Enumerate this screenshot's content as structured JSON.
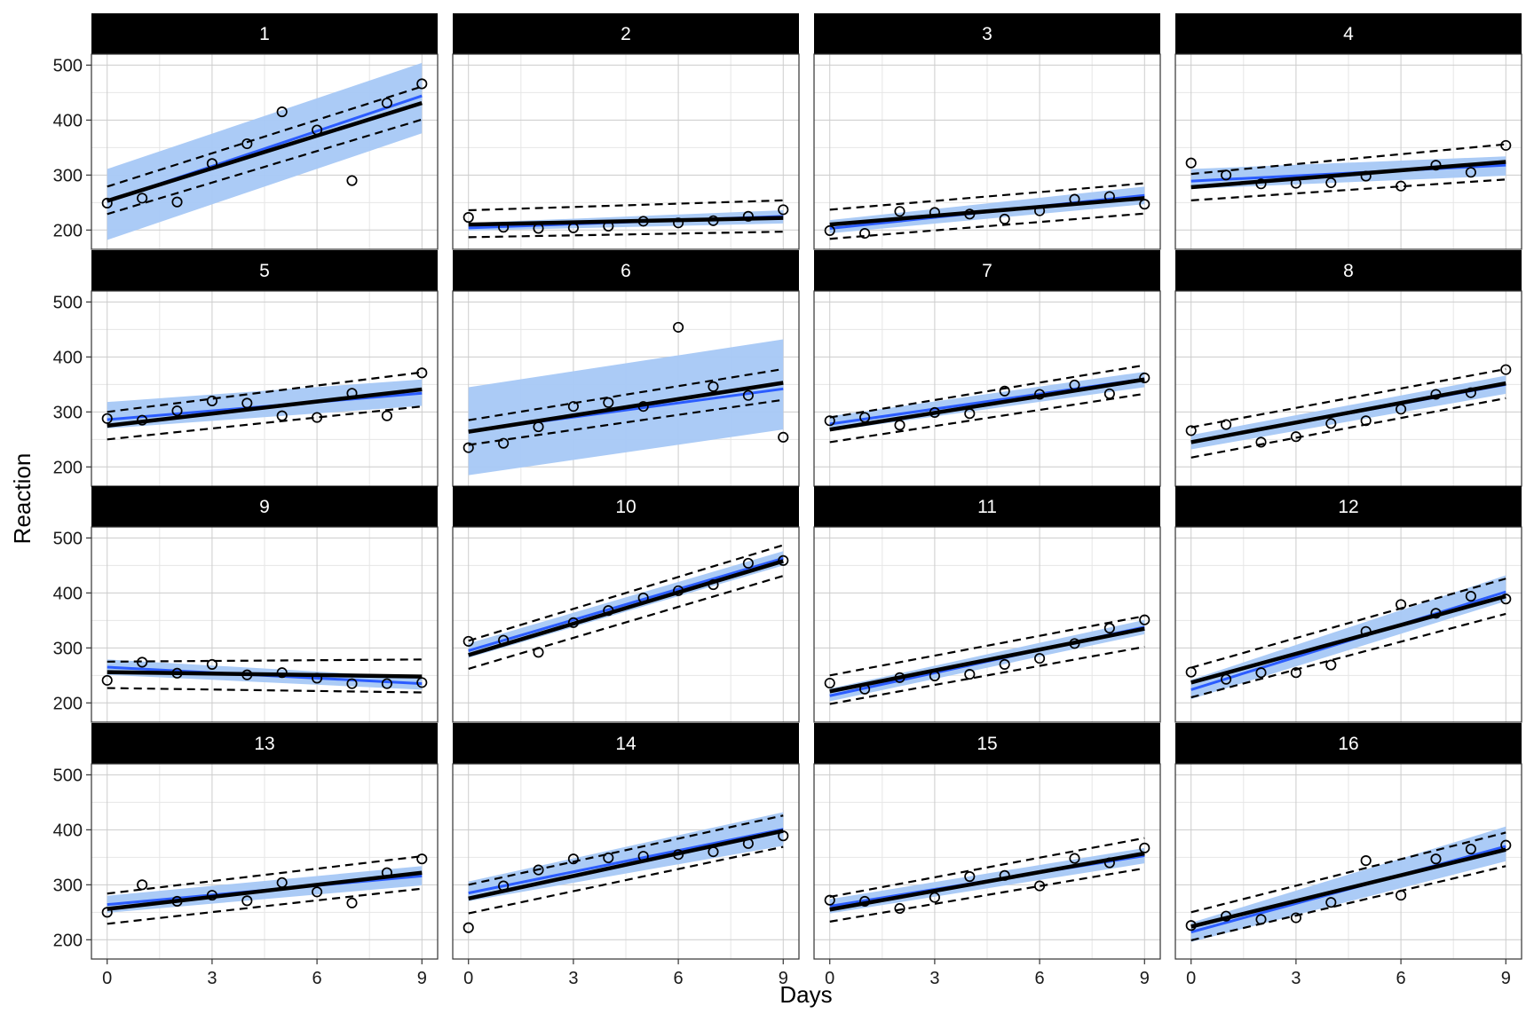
{
  "chart_data": {
    "type": "scatter",
    "facet_layout": "4 columns x 4 rows",
    "xlabel": "Days",
    "ylabel": "Reaction",
    "xlim": [
      -0.45,
      9.45
    ],
    "ylim": [
      165,
      520
    ],
    "x_ticks": [
      0,
      3,
      6,
      9
    ],
    "y_ticks": [
      200,
      300,
      400,
      500
    ],
    "grid": true,
    "legend": "none",
    "colors": {
      "strip_background": "#000000",
      "strip_text": "#ffffff",
      "confidence_band": "#a6c8f5",
      "blue_fit_line": "#2b5cff",
      "black_fit_line": "#000000",
      "dashed_interval": "#000000",
      "points": "#000000",
      "grid": "#cccccc",
      "panel_border": "#333333"
    },
    "series_layers": [
      "observed points (open circles)",
      "blue regression line",
      "light-blue confidence band",
      "black fitted line",
      "black dashed interval lines"
    ],
    "panels": [
      {
        "label": "1",
        "x": [
          0,
          1,
          2,
          3,
          4,
          5,
          6,
          7,
          8,
          9
        ],
        "y": [
          249,
          258,
          251,
          321,
          357,
          415,
          382,
          290,
          431,
          466
        ],
        "blue_fit": [
          252,
          444
        ],
        "black_fit": [
          253,
          431
        ],
        "band_lo": [
          182,
          376
        ],
        "band_hi": [
          311,
          504
        ],
        "dash_lo": [
          229,
          401
        ],
        "dash_hi": [
          279,
          461
        ]
      },
      {
        "label": "2",
        "x": [
          0,
          1,
          2,
          3,
          4,
          5,
          6,
          7,
          8,
          9
        ],
        "y": [
          223,
          205,
          203,
          204,
          207,
          216,
          213,
          217,
          225,
          237
        ],
        "blue_fit": [
          204,
          225
        ],
        "black_fit": [
          210,
          222
        ],
        "band_lo": [
          199,
          212
        ],
        "band_hi": [
          213,
          236
        ],
        "dash_lo": [
          187,
          197
        ],
        "dash_hi": [
          236,
          254
        ]
      },
      {
        "label": "3",
        "x": [
          0,
          1,
          2,
          3,
          4,
          5,
          6,
          7,
          8,
          9
        ],
        "y": [
          199,
          194,
          234,
          232,
          229,
          220,
          235,
          256,
          261,
          247
        ],
        "blue_fit": [
          203,
          263
        ],
        "black_fit": [
          210,
          258
        ],
        "band_lo": [
          194,
          247
        ],
        "band_hi": [
          218,
          279
        ],
        "dash_lo": [
          184,
          230
        ],
        "dash_hi": [
          237,
          285
        ]
      },
      {
        "label": "4",
        "x": [
          0,
          1,
          2,
          3,
          4,
          5,
          6,
          7,
          8,
          9
        ],
        "y": [
          322,
          300,
          284,
          285,
          286,
          298,
          280,
          318,
          305,
          354
        ],
        "blue_fit": [
          289,
          318
        ],
        "black_fit": [
          278,
          324
        ],
        "band_lo": [
          275,
          299
        ],
        "band_hi": [
          311,
          334
        ],
        "dash_lo": [
          254,
          292
        ],
        "dash_hi": [
          302,
          356
        ]
      },
      {
        "label": "5",
        "x": [
          0,
          1,
          2,
          3,
          4,
          5,
          6,
          7,
          8,
          9
        ],
        "y": [
          288,
          285,
          302,
          320,
          316,
          293,
          290,
          334,
          293,
          371
        ],
        "blue_fit": [
          286,
          334
        ],
        "black_fit": [
          275,
          341
        ],
        "band_lo": [
          270,
          311
        ],
        "band_hi": [
          318,
          359
        ],
        "dash_lo": [
          250,
          310
        ],
        "dash_hi": [
          300,
          372
        ]
      },
      {
        "label": "6",
        "x": [
          0,
          1,
          2,
          3,
          4,
          5,
          6,
          7,
          8,
          9
        ],
        "y": [
          235,
          243,
          273,
          310,
          317,
          310,
          454,
          346,
          330,
          254
        ],
        "blue_fit": [
          265,
          342
        ],
        "black_fit": [
          264,
          353
        ],
        "band_lo": [
          185,
          268
        ],
        "band_hi": [
          345,
          432
        ],
        "dash_lo": [
          240,
          322
        ],
        "dash_hi": [
          285,
          378
        ]
      },
      {
        "label": "7",
        "x": [
          0,
          1,
          2,
          3,
          4,
          5,
          6,
          7,
          8,
          9
        ],
        "y": [
          284,
          290,
          276,
          299,
          297,
          338,
          332,
          349,
          333,
          362
        ],
        "blue_fit": [
          278,
          360
        ],
        "black_fit": [
          268,
          359
        ],
        "band_lo": [
          265,
          345
        ],
        "band_hi": [
          292,
          373
        ],
        "dash_lo": [
          245,
          333
        ],
        "dash_hi": [
          290,
          385
        ]
      },
      {
        "label": "8",
        "x": [
          0,
          1,
          2,
          3,
          4,
          5,
          6,
          7,
          8,
          9
        ],
        "y": [
          266,
          277,
          245,
          255,
          279,
          284,
          305,
          332,
          335,
          377
        ],
        "blue_fit": [
          245,
          350
        ],
        "black_fit": [
          245,
          352
        ],
        "band_lo": [
          232,
          333
        ],
        "band_hi": [
          258,
          366
        ],
        "dash_lo": [
          217,
          325
        ],
        "dash_hi": [
          272,
          378
        ]
      },
      {
        "label": "9",
        "x": [
          0,
          1,
          2,
          3,
          4,
          5,
          6,
          7,
          8,
          9
        ],
        "y": [
          241,
          274,
          254,
          270,
          251,
          255,
          245,
          235,
          235,
          237
        ],
        "blue_fit": [
          265,
          235
        ],
        "black_fit": [
          256,
          248
        ],
        "band_lo": [
          251,
          224
        ],
        "band_hi": [
          279,
          246
        ],
        "dash_lo": [
          227,
          219
        ],
        "dash_hi": [
          275,
          279
        ]
      },
      {
        "label": "10",
        "x": [
          0,
          1,
          2,
          3,
          4,
          5,
          6,
          7,
          8,
          9
        ],
        "y": [
          312,
          314,
          292,
          346,
          368,
          391,
          404,
          415,
          454,
          459
        ],
        "blue_fit": [
          295,
          463
        ],
        "black_fit": [
          287,
          458
        ],
        "band_lo": [
          282,
          450
        ],
        "band_hi": [
          308,
          476
        ],
        "dash_lo": [
          262,
          431
        ],
        "dash_hi": [
          313,
          487
        ]
      },
      {
        "label": "11",
        "x": [
          0,
          1,
          2,
          3,
          4,
          5,
          6,
          7,
          8,
          9
        ],
        "y": [
          236,
          225,
          246,
          249,
          252,
          270,
          281,
          308,
          336,
          351
        ],
        "blue_fit": [
          213,
          338
        ],
        "black_fit": [
          221,
          335
        ],
        "band_lo": [
          203,
          325
        ],
        "band_hi": [
          226,
          351
        ],
        "dash_lo": [
          198,
          302
        ],
        "dash_hi": [
          250,
          358
        ]
      },
      {
        "label": "12",
        "x": [
          0,
          1,
          2,
          3,
          4,
          5,
          6,
          7,
          8,
          9
        ],
        "y": [
          256,
          243,
          255,
          255,
          269,
          330,
          379,
          363,
          394,
          389
        ],
        "blue_fit": [
          224,
          402
        ],
        "black_fit": [
          237,
          394
        ],
        "band_lo": [
          207,
          385
        ],
        "band_hi": [
          242,
          432
        ],
        "dash_lo": [
          210,
          362
        ],
        "dash_hi": [
          264,
          426
        ]
      },
      {
        "label": "13",
        "x": [
          0,
          1,
          2,
          3,
          4,
          5,
          6,
          7,
          8,
          9
        ],
        "y": [
          250,
          300,
          270,
          281,
          271,
          304,
          287,
          267,
          322,
          347
        ],
        "blue_fit": [
          264,
          316
        ],
        "black_fit": [
          256,
          322
        ],
        "band_lo": [
          249,
          299
        ],
        "band_hi": [
          280,
          334
        ],
        "dash_lo": [
          229,
          293
        ],
        "dash_hi": [
          284,
          352
        ]
      },
      {
        "label": "14",
        "x": [
          0,
          1,
          2,
          3,
          4,
          5,
          6,
          7,
          8,
          9
        ],
        "y": [
          222,
          298,
          327,
          347,
          349,
          352,
          355,
          360,
          375,
          389
        ],
        "blue_fit": [
          285,
          401
        ],
        "black_fit": [
          275,
          398
        ],
        "band_lo": [
          270,
          371
        ],
        "band_hi": [
          306,
          432
        ],
        "dash_lo": [
          248,
          369
        ],
        "dash_hi": [
          300,
          426
        ]
      },
      {
        "label": "15",
        "x": [
          0,
          1,
          2,
          3,
          4,
          5,
          6,
          7,
          8,
          9
        ],
        "y": [
          272,
          270,
          257,
          277,
          315,
          317,
          298,
          348,
          340,
          367
        ],
        "blue_fit": [
          261,
          353
        ],
        "black_fit": [
          255,
          357
        ],
        "band_lo": [
          248,
          339
        ],
        "band_hi": [
          274,
          367
        ],
        "dash_lo": [
          233,
          330
        ],
        "dash_hi": [
          278,
          385
        ]
      },
      {
        "label": "16",
        "x": [
          0,
          1,
          2,
          3,
          4,
          5,
          6,
          7,
          8,
          9
        ],
        "y": [
          226,
          243,
          237,
          240,
          268,
          344,
          281,
          347,
          365,
          372
        ],
        "blue_fit": [
          214,
          370
        ],
        "black_fit": [
          224,
          364
        ],
        "band_lo": [
          196,
          343
        ],
        "band_hi": [
          231,
          406
        ],
        "dash_lo": [
          199,
          334
        ],
        "dash_hi": [
          250,
          395
        ]
      }
    ]
  }
}
